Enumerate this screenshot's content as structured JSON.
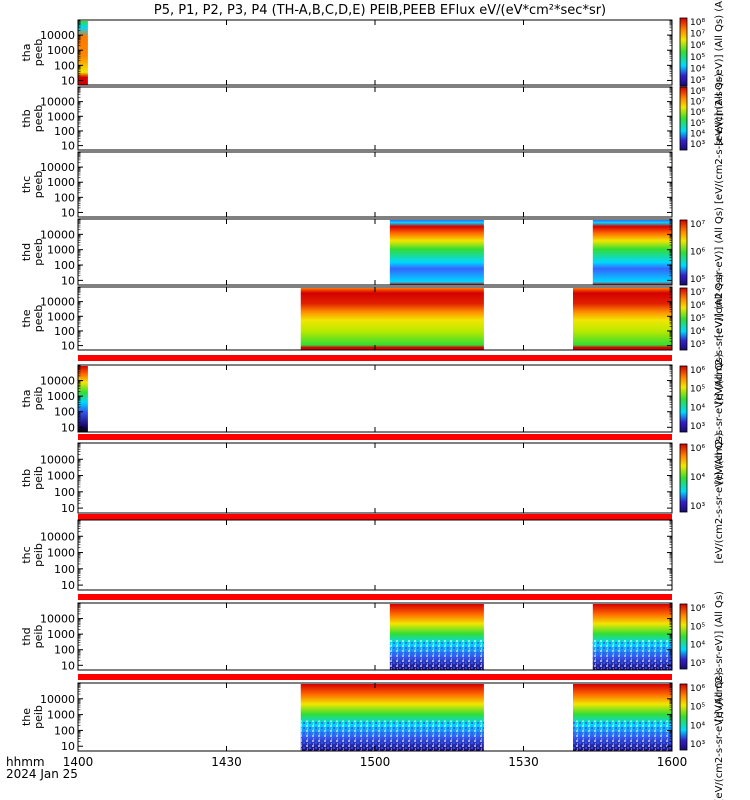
{
  "title": "P5, P1, P2, P3, P4 (TH-A,B,C,D,E) PEIB,PEEB EFlux eV/(eV*cm²*sec*sr)",
  "x_axis": {
    "ticks": [
      "1400",
      "1430",
      "1500",
      "1530",
      "1600"
    ],
    "label_line1": "hhmm",
    "label_line2": "2024 Jan 25"
  },
  "colors": {
    "high": "#d40000",
    "mid_high": "#ff8800",
    "mid": "#f2e600",
    "mid_low": "#33dd33",
    "low": "#00d8ff",
    "lower": "#3366ff",
    "lowest": "#1a0a70",
    "bad_data_bar": "#ff0000"
  },
  "chart_data": [
    {
      "type": "heatmap",
      "ylabel": "tha\npeeb",
      "y_ticks": [
        "10",
        "100",
        "1000",
        "10000"
      ],
      "y_scale": "log",
      "x_range": [
        "1400",
        "1600"
      ],
      "data_intervals": [
        [
          "1400",
          "1402"
        ]
      ],
      "colorbar_ticks": [
        "10⁸",
        "10⁷",
        "10⁶",
        "10⁵",
        "10⁴",
        "10³"
      ],
      "colorbar_label": "[eV/(cm2-s-sr-eV)] (All Qs) (Al"
    },
    {
      "type": "heatmap",
      "ylabel": "thb\npeeb",
      "y_ticks": [
        "10",
        "100",
        "1000",
        "10000"
      ],
      "y_scale": "log",
      "x_range": [
        "1400",
        "1600"
      ],
      "data_intervals": [],
      "colorbar_ticks": [
        "10⁸",
        "10⁷",
        "10⁶",
        "10⁵",
        "10⁴",
        "10³"
      ],
      "colorbar_label": "[eV/(cm2-s-sr-eV)] (All Qs)"
    },
    {
      "type": "heatmap",
      "ylabel": "thc\npeeb",
      "y_ticks": [
        "10",
        "100",
        "1000",
        "10000"
      ],
      "y_scale": "log",
      "x_range": [
        "1400",
        "1600"
      ],
      "data_intervals": [],
      "colorbar_ticks": [],
      "colorbar_label": ""
    },
    {
      "type": "heatmap",
      "ylabel": "thd\npeeb",
      "y_ticks": [
        "10",
        "100",
        "1000",
        "10000"
      ],
      "y_scale": "log",
      "x_range": [
        "1400",
        "1600"
      ],
      "data_intervals": [
        [
          "1503",
          "1522"
        ],
        [
          "1544",
          "1600"
        ]
      ],
      "colorbar_ticks": [
        "10⁷",
        "10⁶",
        "10⁵"
      ],
      "colorbar_label": "[eV/(cm2-s-sr-eV)] (All Qs)"
    },
    {
      "type": "heatmap",
      "ylabel": "the\npeeb",
      "y_ticks": [
        "10",
        "100",
        "1000",
        "10000"
      ],
      "y_scale": "log",
      "x_range": [
        "1400",
        "1600"
      ],
      "data_intervals": [
        [
          "1445",
          "1522"
        ],
        [
          "1540",
          "1600"
        ]
      ],
      "colorbar_ticks": [
        "10⁷",
        "10⁶",
        "10⁵",
        "10⁴",
        "10³"
      ],
      "colorbar_label": "[eV/(cm2-s-sr-eV)] (All Qs)"
    },
    {
      "type": "heatmap",
      "ylabel": "tha\npeib",
      "y_ticks": [
        "10",
        "100",
        "1000",
        "10000"
      ],
      "y_scale": "log",
      "x_range": [
        "1400",
        "1600"
      ],
      "data_intervals": [
        [
          "1400",
          "1402"
        ]
      ],
      "colorbar_ticks": [
        "10⁶",
        "10⁵",
        "10⁴",
        "10³"
      ],
      "colorbar_label": "[eV/(cm2-s-sr-eV)] (All Qs)"
    },
    {
      "type": "heatmap",
      "ylabel": "thb\npeib",
      "y_ticks": [
        "10",
        "100",
        "1000",
        "10000"
      ],
      "y_scale": "log",
      "x_range": [
        "1400",
        "1600"
      ],
      "data_intervals": [],
      "colorbar_ticks": [
        "10⁶",
        "10⁴",
        "10³"
      ],
      "colorbar_label": "[eV/(cm2-s-sr-eV)] (All Qs)"
    },
    {
      "type": "heatmap",
      "ylabel": "thc\npeib",
      "y_ticks": [
        "10",
        "100",
        "1000",
        "10000"
      ],
      "y_scale": "log",
      "x_range": [
        "1400",
        "1600"
      ],
      "data_intervals": [],
      "colorbar_ticks": [],
      "colorbar_label": "[eV/(cm2-s-sr-eV)] (All Qs)"
    },
    {
      "type": "heatmap",
      "ylabel": "thd\npeib",
      "y_ticks": [
        "10",
        "100",
        "1000",
        "10000"
      ],
      "y_scale": "log",
      "x_range": [
        "1400",
        "1600"
      ],
      "data_intervals": [
        [
          "1503",
          "1522"
        ],
        [
          "1544",
          "1600"
        ]
      ],
      "colorbar_ticks": [
        "10⁶",
        "10⁵",
        "10⁴",
        "10³"
      ],
      "colorbar_label": "[eV/(cm2-s-sr-eV)] (All Qs)"
    },
    {
      "type": "heatmap",
      "ylabel": "the\npeib",
      "y_ticks": [
        "10",
        "100",
        "1000",
        "10000"
      ],
      "y_scale": "log",
      "x_range": [
        "1400",
        "1600"
      ],
      "data_intervals": [
        [
          "1445",
          "1522"
        ],
        [
          "1540",
          "1600"
        ]
      ],
      "colorbar_ticks": [
        "10⁶",
        "10⁵",
        "10⁴",
        "10³"
      ],
      "colorbar_label": "[eV/(cm2-s-sr-eV)] (All Qs)"
    }
  ]
}
